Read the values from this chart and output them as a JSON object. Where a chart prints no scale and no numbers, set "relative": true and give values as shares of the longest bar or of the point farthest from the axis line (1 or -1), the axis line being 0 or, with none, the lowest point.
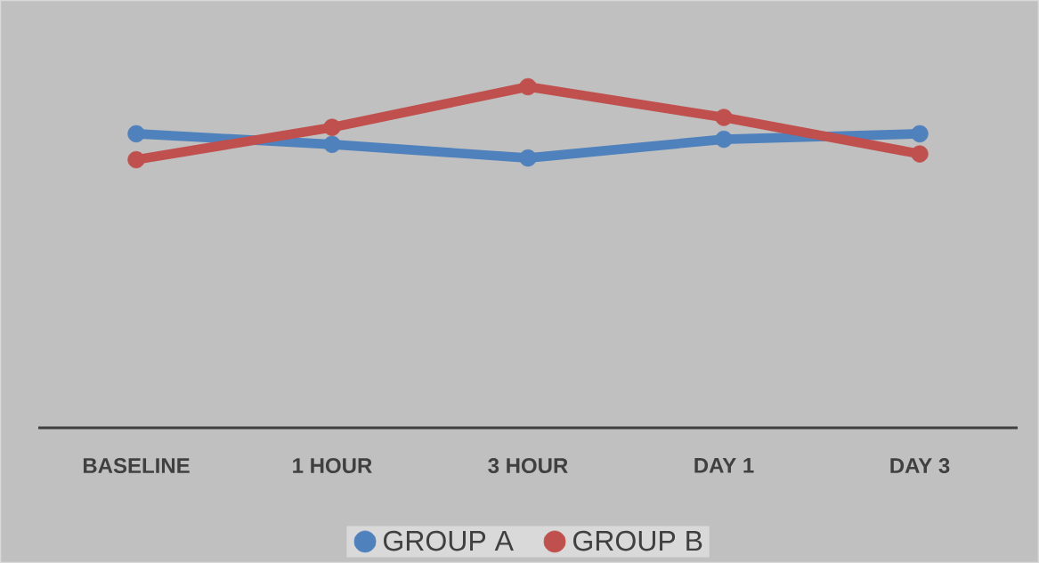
{
  "chart_data": {
    "type": "line",
    "relative": true,
    "categories": [
      "BASELINE",
      "1 HOUR",
      "3 HOUR",
      "DAY 1",
      "DAY 3"
    ],
    "series": [
      {
        "name": "GROUP A",
        "color": "#4f81bd",
        "values": [
          0.862,
          0.831,
          0.791,
          0.846,
          0.862
        ]
      },
      {
        "name": "GROUP B",
        "color": "#c0504d",
        "values": [
          0.786,
          0.881,
          1,
          0.91,
          0.803
        ]
      }
    ],
    "legend": "bottom",
    "marker": "circle",
    "line_style": "solid"
  }
}
